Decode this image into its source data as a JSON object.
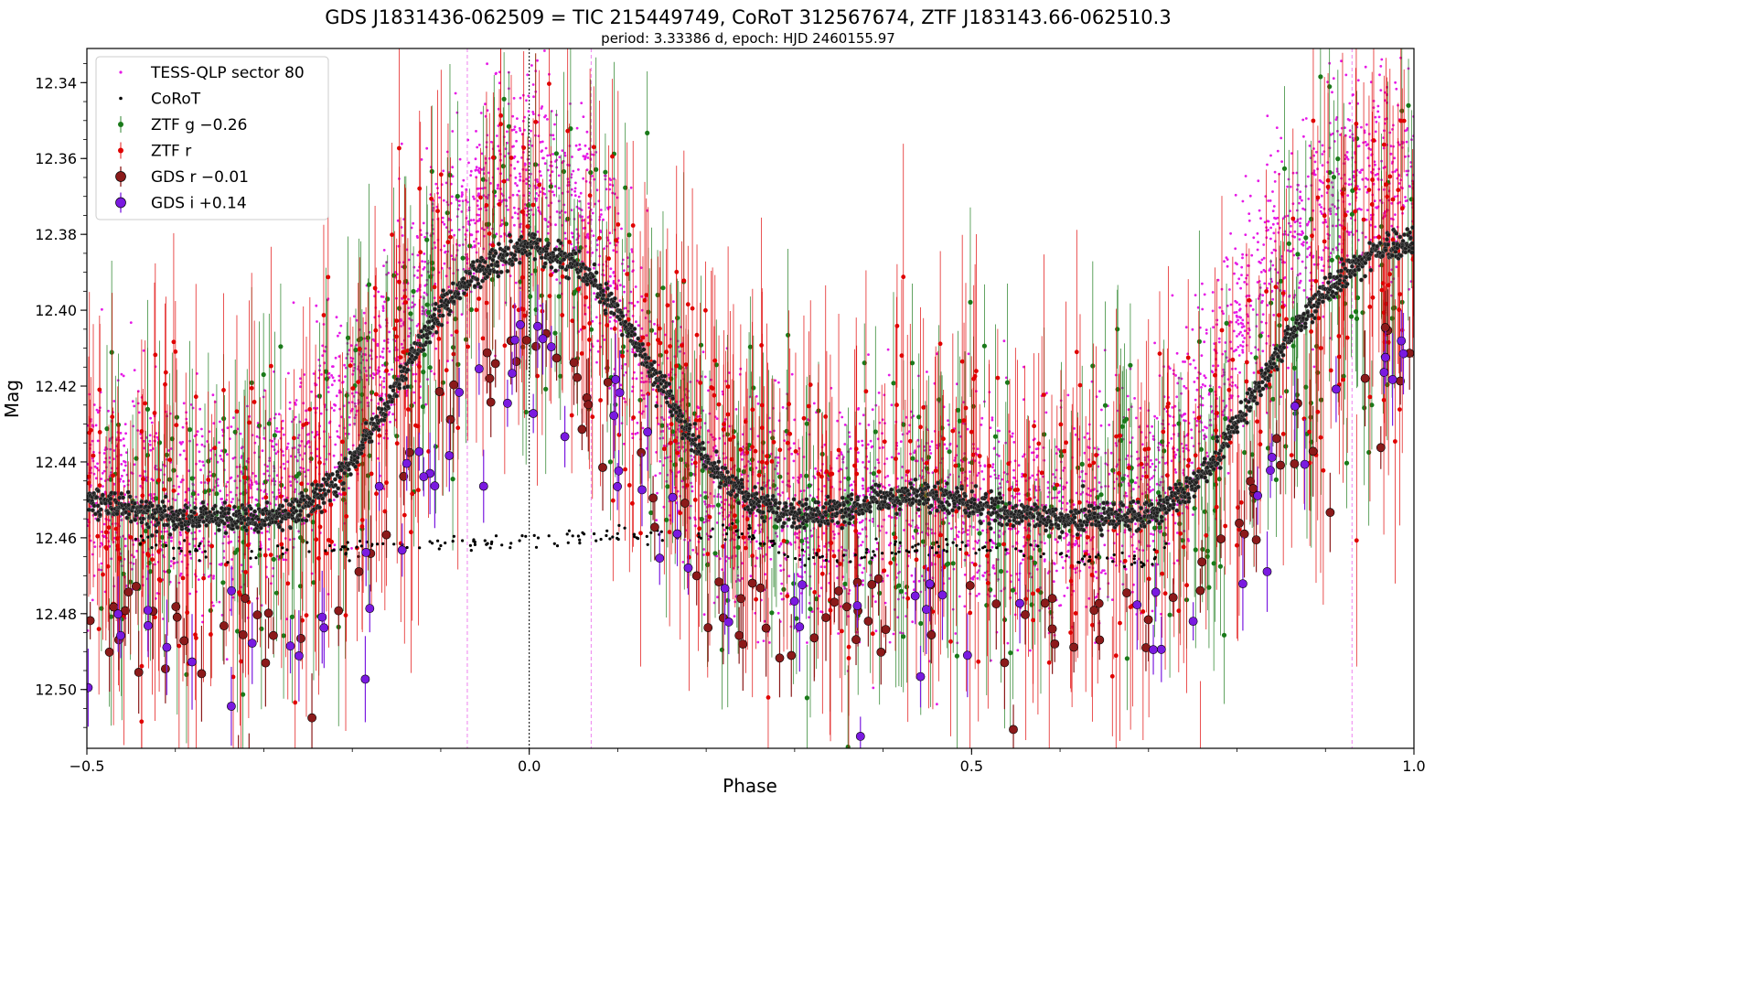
{
  "chart_data": {
    "type": "scatter",
    "title": "GDS J1831436-062509 = TIC 215449749, CoRoT 312567674, ZTF J183143.66-062510.3",
    "subtitle": "period: 3.33386 d, epoch: HJD 2460155.97",
    "xlabel": "Phase",
    "ylabel": "Mag",
    "xlim": [
      -0.5,
      1.0
    ],
    "ylim": [
      12.5155,
      12.331
    ],
    "y_inverted": true,
    "x_ticks": [
      -0.5,
      0.0,
      0.5,
      1.0
    ],
    "x_tick_labels": [
      "−0.5",
      "0.0",
      "0.5",
      "1.0"
    ],
    "y_ticks": [
      12.34,
      12.36,
      12.38,
      12.4,
      12.42,
      12.44,
      12.46,
      12.48,
      12.5
    ],
    "y_tick_labels": [
      "12.34",
      "12.36",
      "12.38",
      "12.40",
      "12.42",
      "12.44",
      "12.46",
      "12.48",
      "12.50"
    ],
    "grid": false,
    "legend_position": "top-left",
    "vertical_lines": [
      {
        "x": -0.07,
        "color": "#ee82ee",
        "style": "dashed"
      },
      {
        "x": 0.0,
        "color": "#000000",
        "style": "dotted"
      },
      {
        "x": 0.07,
        "color": "#ee82ee",
        "style": "dashed"
      },
      {
        "x": 0.93,
        "color": "#ee82ee",
        "style": "dashed"
      }
    ],
    "series": [
      {
        "name": "TESS-QLP sector 80",
        "marker": "small-dot",
        "color": "#e619e6",
        "trend": {
          "phase": [
            -0.5,
            -0.4,
            -0.3,
            -0.2,
            -0.1,
            -0.05,
            0.0,
            0.05,
            0.1,
            0.15,
            0.2,
            0.25,
            0.3,
            0.4,
            0.5,
            0.6,
            0.7,
            0.75,
            0.8,
            0.85,
            0.9,
            0.95,
            1.0
          ],
          "mag": [
            12.447,
            12.451,
            12.449,
            12.425,
            12.385,
            12.368,
            12.362,
            12.37,
            12.395,
            12.425,
            12.445,
            12.452,
            12.455,
            12.45,
            12.453,
            12.455,
            12.447,
            12.43,
            12.405,
            12.385,
            12.372,
            12.365,
            12.365
          ]
        },
        "scatter": 0.025
      },
      {
        "name": "CoRoT",
        "marker": "dot",
        "color": "#000000",
        "trend": {
          "phase": [
            -0.5,
            -0.4,
            -0.3,
            -0.25,
            -0.2,
            -0.15,
            -0.1,
            -0.05,
            0.0,
            0.05,
            0.1,
            0.15,
            0.2,
            0.25,
            0.3,
            0.35,
            0.4,
            0.45,
            0.5,
            0.55,
            0.6,
            0.65,
            0.7,
            0.75,
            0.8,
            0.85,
            0.9,
            0.95,
            1.0
          ],
          "mag": [
            12.45,
            12.455,
            12.455,
            12.452,
            12.44,
            12.42,
            12.4,
            12.388,
            12.383,
            12.387,
            12.4,
            12.42,
            12.44,
            12.45,
            12.454,
            12.453,
            12.45,
            12.449,
            12.451,
            12.454,
            12.455,
            12.455,
            12.454,
            12.447,
            12.43,
            12.41,
            12.395,
            12.385,
            12.382
          ]
        },
        "secondary_branch": {
          "phase": [
            -0.45,
            -0.35,
            -0.3,
            0.25,
            0.3,
            0.35,
            0.4,
            0.5,
            0.6,
            0.7,
            0.72
          ],
          "mag": [
            12.46,
            12.465,
            12.464,
            12.458,
            12.465,
            12.466,
            12.463,
            12.462,
            12.465,
            12.466,
            12.462
          ]
        }
      },
      {
        "name": "ZTF g −0.26",
        "marker": "errorbar-dot",
        "color": "#1a7a1a",
        "error": 0.02
      },
      {
        "name": "ZTF r",
        "marker": "errorbar-dot",
        "color": "#e00000",
        "error": 0.025
      },
      {
        "name": "GDS r −0.01",
        "marker": "large-dot",
        "color": "#8b1a1a",
        "edge_color": "#000000",
        "error": 0.008
      },
      {
        "name": "GDS i +0.14",
        "marker": "large-dot",
        "color": "#7a1ae0",
        "edge_color": "#000000",
        "error": 0.008
      }
    ]
  }
}
